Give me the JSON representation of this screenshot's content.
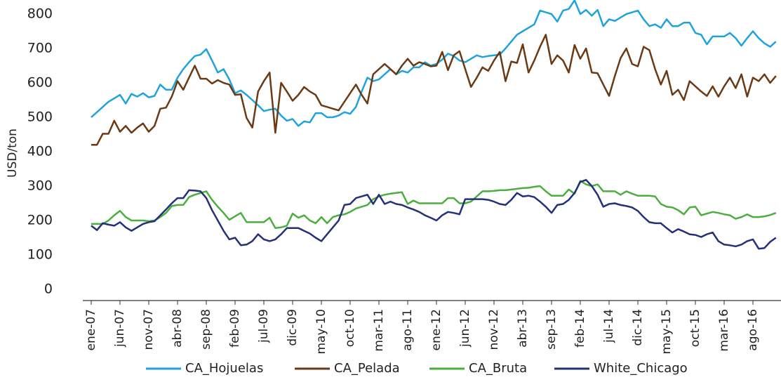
{
  "chart_data": {
    "type": "line",
    "y_label": "USD/ton",
    "ylim": [
      0,
      840
    ],
    "yticks": [
      0,
      100,
      200,
      300,
      400,
      500,
      600,
      700,
      800
    ],
    "categories": [
      "ene-07",
      null,
      null,
      null,
      null,
      "jun-07",
      null,
      null,
      null,
      null,
      "nov-07",
      null,
      null,
      null,
      null,
      "abr-08",
      null,
      null,
      null,
      null,
      "sep-08",
      null,
      null,
      null,
      null,
      "feb-09",
      null,
      null,
      null,
      null,
      "jul-09",
      null,
      null,
      null,
      null,
      "dic-09",
      null,
      null,
      null,
      null,
      "may-10",
      null,
      null,
      null,
      null,
      "oct-10",
      null,
      null,
      null,
      null,
      "mar-11",
      null,
      null,
      null,
      null,
      "ago-11",
      null,
      null,
      null,
      null,
      "ene-12",
      null,
      null,
      null,
      null,
      "jun-12",
      null,
      null,
      null,
      null,
      "nov-12",
      null,
      null,
      null,
      null,
      "abr-13",
      null,
      null,
      null,
      null,
      "sep-13",
      null,
      null,
      null,
      null,
      "feb-14",
      null,
      null,
      null,
      null,
      "jul-14",
      null,
      null,
      null,
      null,
      "dic-14",
      null,
      null,
      null,
      null,
      "may-15",
      null,
      null,
      null,
      null,
      "oct-15",
      null,
      null,
      null,
      null,
      "mar-16",
      null,
      null,
      null,
      null,
      "ago-16",
      null,
      null,
      null,
      null
    ],
    "series": [
      {
        "name": "CA_Hojuelas",
        "color": "#1ea3dc",
        "values": [
          500,
          515,
          530,
          545,
          555,
          565,
          540,
          568,
          560,
          570,
          558,
          562,
          595,
          580,
          580,
          615,
          640,
          660,
          678,
          682,
          698,
          665,
          630,
          640,
          610,
          570,
          578,
          565,
          550,
          535,
          518,
          522,
          525,
          505,
          490,
          495,
          475,
          488,
          485,
          512,
          512,
          500,
          500,
          505,
          515,
          510,
          530,
          575,
          615,
          605,
          610,
          625,
          640,
          625,
          635,
          630,
          645,
          645,
          660,
          650,
          655,
          668,
          685,
          678,
          665,
          660,
          670,
          680,
          675,
          678,
          680,
          682,
          700,
          720,
          740,
          750,
          760,
          770,
          810,
          805,
          800,
          778,
          810,
          815,
          840,
          800,
          812,
          795,
          812,
          765,
          785,
          780,
          790,
          800,
          805,
          810,
          785,
          765,
          770,
          760,
          785,
          765,
          765,
          775,
          775,
          745,
          740,
          712,
          735,
          735,
          735,
          745,
          730,
          708,
          730,
          750,
          730,
          715,
          705,
          720
        ]
      },
      {
        "name": "CA_Pelada",
        "color": "#6b3a14",
        "values": [
          420,
          420,
          452,
          452,
          490,
          458,
          475,
          455,
          470,
          482,
          458,
          475,
          525,
          528,
          560,
          605,
          580,
          615,
          650,
          612,
          612,
          598,
          608,
          600,
          595,
          565,
          567,
          498,
          470,
          575,
          605,
          630,
          455,
          600,
          575,
          548,
          565,
          588,
          575,
          565,
          535,
          530,
          525,
          520,
          545,
          570,
          595,
          565,
          540,
          625,
          640,
          655,
          640,
          625,
          650,
          670,
          650,
          660,
          655,
          648,
          650,
          690,
          637,
          680,
          692,
          640,
          588,
          615,
          645,
          635,
          665,
          690,
          605,
          662,
          658,
          712,
          630,
          665,
          705,
          740,
          655,
          680,
          665,
          630,
          710,
          670,
          700,
          630,
          628,
          595,
          562,
          620,
          672,
          700,
          655,
          648,
          705,
          695,
          640,
          595,
          635,
          565,
          580,
          550,
          605,
          590,
          575,
          562,
          590,
          560,
          590,
          615,
          585,
          625,
          560,
          615,
          605,
          625,
          600,
          620
        ]
      },
      {
        "name": "CA_Bruta",
        "color": "#4cae3f",
        "values": [
          190,
          190,
          190,
          200,
          215,
          228,
          210,
          200,
          200,
          200,
          198,
          200,
          210,
          222,
          242,
          245,
          245,
          268,
          275,
          280,
          285,
          260,
          240,
          222,
          202,
          212,
          222,
          195,
          195,
          195,
          195,
          208,
          178,
          180,
          185,
          220,
          208,
          215,
          200,
          192,
          210,
          192,
          210,
          215,
          218,
          225,
          235,
          240,
          245,
          262,
          270,
          275,
          278,
          280,
          282,
          248,
          258,
          250,
          250,
          250,
          250,
          250,
          265,
          265,
          250,
          250,
          255,
          270,
          285,
          285,
          286,
          288,
          288,
          290,
          292,
          294,
          295,
          298,
          300,
          285,
          272,
          272,
          272,
          290,
          278,
          315,
          305,
          300,
          305,
          285,
          285,
          285,
          275,
          285,
          278,
          272,
          272,
          272,
          270,
          248,
          240,
          238,
          230,
          218,
          238,
          240,
          215,
          220,
          225,
          222,
          218,
          215,
          205,
          210,
          218,
          210,
          210,
          212,
          216,
          222
        ]
      },
      {
        "name": "White_Chicago",
        "color": "#24307a",
        "values": [
          185,
          172,
          192,
          188,
          185,
          195,
          180,
          170,
          180,
          190,
          195,
          198,
          215,
          232,
          250,
          265,
          265,
          288,
          287,
          285,
          265,
          230,
          200,
          170,
          145,
          150,
          128,
          130,
          140,
          160,
          145,
          140,
          145,
          160,
          178,
          178,
          178,
          170,
          162,
          150,
          140,
          160,
          180,
          200,
          245,
          248,
          265,
          270,
          275,
          248,
          275,
          248,
          255,
          248,
          245,
          238,
          232,
          225,
          215,
          208,
          200,
          215,
          225,
          222,
          218,
          262,
          262,
          262,
          262,
          260,
          255,
          248,
          245,
          260,
          280,
          270,
          272,
          268,
          255,
          240,
          222,
          245,
          248,
          260,
          280,
          312,
          318,
          300,
          275,
          240,
          248,
          250,
          245,
          242,
          238,
          228,
          210,
          195,
          192,
          192,
          178,
          165,
          175,
          168,
          160,
          158,
          152,
          160,
          165,
          140,
          130,
          128,
          125,
          130,
          140,
          145,
          118,
          120,
          138,
          150
        ]
      }
    ]
  }
}
